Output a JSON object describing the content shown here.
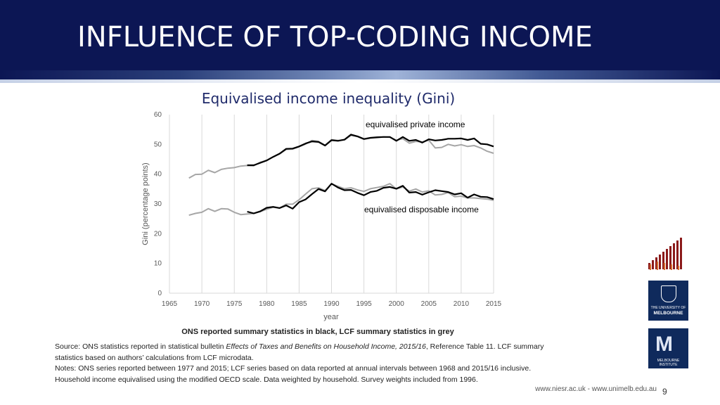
{
  "slide": {
    "title": "INFLUENCE OF TOP-CODING INCOME",
    "page_number": "9",
    "footer": "www.niesr.ac.uk   -   www.unimelb.edu.au"
  },
  "caption": {
    "bold": "ONS reported summary statistics in black, LCF summary statistics in grey"
  },
  "source": {
    "part1": "Source: ONS statistics reported in statistical bulletin ",
    "italic": "Effects of Taxes and Benefits on Household Income, 2015/16",
    "part2": ", Reference Table 11.  LCF summary statistics based on authors’ calculations from LCF microdata.",
    "notes": "Notes: ONS series reported between 1977 and 2015; LCF series based on data reported at annual intervals between 1968 and 2015/16 inclusive.  Household income equivalised using the modified OECD scale. Data weighted by household. Survey weights included from 1996."
  },
  "logos": {
    "uom_line1": "THE UNIVERSITY OF",
    "uom_line2": "MELBOURNE",
    "mi_line": "MELBOURNE INSTITUTE"
  },
  "chart_data": {
    "type": "line",
    "title": "Equivalised income inequality (Gini)",
    "xlabel": "year",
    "ylabel": "Gini (percentage points)",
    "xlim": [
      1965,
      2015
    ],
    "ylim": [
      0,
      60
    ],
    "xticks": [
      "1965",
      "1970",
      "1975",
      "1980",
      "1985",
      "1990",
      "1995",
      "2000",
      "2005",
      "2010",
      "2015"
    ],
    "yticks": [
      "0",
      "10",
      "20",
      "30",
      "40",
      "50",
      "60"
    ],
    "grid": "vertical",
    "annotations": [
      "equivalised private income",
      "equivalised disposable income"
    ],
    "series": [
      {
        "name": "",
        "color": "#000000",
        "x": [
          1977,
          1978,
          1979,
          1980,
          1981,
          1982,
          1983,
          1984,
          1985,
          1986,
          1987,
          1988,
          1989,
          1990,
          1991,
          1992,
          1993,
          1994,
          1995,
          1996,
          1997,
          1998,
          1999,
          2000,
          2001,
          2002,
          2003,
          2004,
          2005,
          2006,
          2007,
          2008,
          2009,
          2010,
          2011,
          2012,
          2013,
          2014,
          2015
        ],
        "y": [
          43.0,
          43.0,
          43.8,
          44.6,
          45.8,
          46.9,
          48.5,
          48.6,
          49.3,
          50.3,
          51.0,
          50.8,
          49.6,
          51.4,
          51.2,
          51.6,
          53.3,
          52.7,
          51.8,
          52.2,
          52.4,
          52.5,
          52.5,
          51.2,
          52.5,
          51.2,
          51.5,
          50.6,
          51.7,
          51.3,
          51.5,
          51.9,
          51.9,
          52.0,
          51.5,
          52.0,
          50.2,
          50.0,
          49.3
        ]
      },
      {
        "name": "",
        "color": "#a6a6a6",
        "x": [
          1968,
          1969,
          1970,
          1971,
          1972,
          1973,
          1974,
          1975,
          1976,
          1977,
          1978,
          1979,
          1980,
          1981,
          1982,
          1983,
          1984,
          1985,
          1986,
          1987,
          1988,
          1989,
          1990,
          1991,
          1992,
          1993,
          1994,
          1995,
          1996,
          1997,
          1998,
          1999,
          2000,
          2001,
          2002,
          2003,
          2004,
          2005,
          2006,
          2007,
          2008,
          2009,
          2010,
          2011,
          2012,
          2013,
          2014,
          2015
        ],
        "y": [
          38.7,
          39.9,
          40.0,
          41.3,
          40.5,
          41.6,
          42.0,
          42.2,
          42.7,
          42.9,
          42.8,
          44.0,
          44.6,
          45.8,
          46.8,
          48.3,
          48.4,
          49.2,
          50.1,
          51.3,
          51.0,
          49.7,
          51.6,
          51.3,
          51.5,
          53.0,
          52.6,
          51.7,
          52.1,
          52.2,
          52.5,
          52.4,
          51.4,
          51.9,
          50.4,
          51.0,
          50.8,
          51.4,
          48.8,
          49.0,
          50.0,
          49.5,
          49.9,
          49.3,
          49.6,
          48.8,
          47.7,
          47.0
        ]
      },
      {
        "name": "",
        "color": "#000000",
        "x": [
          1977,
          1978,
          1979,
          1980,
          1981,
          1982,
          1983,
          1984,
          1985,
          1986,
          1987,
          1988,
          1989,
          1990,
          1991,
          1992,
          1993,
          1994,
          1995,
          1996,
          1997,
          1998,
          1999,
          2000,
          2001,
          2002,
          2003,
          2004,
          2005,
          2006,
          2007,
          2008,
          2009,
          2010,
          2011,
          2012,
          2013,
          2014,
          2015
        ],
        "y": [
          27.4,
          26.8,
          27.5,
          28.7,
          29.0,
          28.6,
          29.5,
          28.4,
          30.6,
          31.5,
          33.3,
          35.0,
          34.2,
          36.8,
          35.5,
          34.6,
          34.7,
          33.7,
          32.9,
          34.0,
          34.4,
          35.4,
          35.7,
          35.1,
          36.1,
          33.8,
          34.0,
          33.1,
          33.9,
          34.6,
          34.3,
          34.0,
          33.2,
          33.6,
          32.1,
          33.2,
          32.4,
          32.3,
          31.6
        ]
      },
      {
        "name": "",
        "color": "#a6a6a6",
        "x": [
          1968,
          1969,
          1970,
          1971,
          1972,
          1973,
          1974,
          1975,
          1976,
          1977,
          1978,
          1979,
          1980,
          1981,
          1982,
          1983,
          1984,
          1985,
          1986,
          1987,
          1988,
          1989,
          1990,
          1991,
          1992,
          1993,
          1994,
          1995,
          1996,
          1997,
          1998,
          1999,
          2000,
          2001,
          2002,
          2003,
          2004,
          2005,
          2006,
          2007,
          2008,
          2009,
          2010,
          2011,
          2012,
          2013,
          2014,
          2015
        ],
        "y": [
          26.2,
          26.8,
          27.2,
          28.4,
          27.5,
          28.4,
          28.3,
          27.2,
          26.4,
          26.6,
          26.8,
          27.4,
          28.2,
          28.9,
          28.6,
          29.9,
          29.9,
          31.4,
          33.3,
          35.1,
          35.4,
          34.5,
          36.7,
          35.9,
          35.1,
          35.4,
          34.7,
          34.2,
          35.1,
          35.5,
          35.9,
          36.8,
          35.0,
          35.7,
          34.3,
          35.0,
          34.0,
          34.4,
          33.0,
          33.2,
          33.8,
          32.4,
          32.6,
          32.0,
          32.0,
          31.8,
          31.6,
          31.2
        ]
      }
    ]
  }
}
